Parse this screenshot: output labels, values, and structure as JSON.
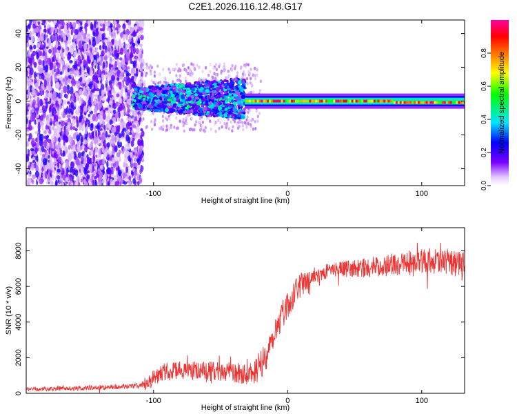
{
  "title": "C2E1.2026.116.12.48.G17",
  "chart_data": [
    {
      "type": "heatmap",
      "title": "C2E1.2026.116.12.48.G17",
      "xlabel": "Height of straight line (km)",
      "ylabel": "Frequency (Hz)",
      "xlim": [
        -195,
        132
      ],
      "ylim": [
        -50,
        48
      ],
      "xticks": [
        -100,
        0,
        100
      ],
      "yticks": [
        -40,
        -20,
        0,
        20,
        40
      ],
      "xtick_labels": [
        "-100",
        "0",
        "100"
      ],
      "ytick_labels": [
        "-40",
        "-20",
        "0",
        "20",
        "40"
      ],
      "regions": [
        {
          "name": "noise",
          "x_range": [
            -195,
            -108
          ],
          "freq_range": [
            -50,
            48
          ],
          "amplitude": [
            0.05,
            0.25
          ]
        },
        {
          "name": "transition",
          "x_range": [
            -115,
            -32
          ],
          "freq_range": [
            -8,
            15
          ],
          "amplitude": [
            0.1,
            0.45
          ]
        },
        {
          "name": "signal",
          "x_range": [
            -32,
            132
          ],
          "freq_range": [
            -2,
            1
          ],
          "amplitude": [
            0.5,
            1.0
          ]
        }
      ],
      "colorbar": {
        "label": "Normalized spectral amplitude",
        "range": [
          0,
          1
        ],
        "ticks": [
          0.0,
          0.2,
          0.4,
          0.6,
          0.8
        ],
        "tick_labels": [
          "0.0",
          "0.2",
          "0.4",
          "0.6",
          "0.8"
        ],
        "colors": [
          "#ffffff",
          "#7a00ff",
          "#0000ff",
          "#00e5ff",
          "#00ff00",
          "#ffff00",
          "#ff8800",
          "#ff0000",
          "#ff00a0"
        ]
      }
    },
    {
      "type": "line",
      "xlabel": "Height of straight line (km)",
      "ylabel": "SNR (10 * v/v)",
      "xlim": [
        -195,
        132
      ],
      "ylim": [
        0,
        9300
      ],
      "xticks": [
        -100,
        0,
        100
      ],
      "yticks": [
        0,
        2000,
        4000,
        6000,
        8000
      ],
      "xtick_labels": [
        "-100",
        "0",
        "100"
      ],
      "ytick_labels": [
        "0",
        "2000",
        "4000",
        "6000",
        "8000"
      ],
      "series": [
        {
          "name": "SNR",
          "color": "#ee3333",
          "trend": {
            "x": [
              -195,
              -160,
              -140,
              -115,
              -105,
              -95,
              -80,
              -60,
              -40,
              -30,
              -22,
              -15,
              -10,
              -5,
              0,
              5,
              10,
              20,
              30,
              45,
              60,
              80,
              100,
              115,
              132
            ],
            "y": [
              250,
              270,
              320,
              400,
              500,
              1200,
              1300,
              1250,
              1150,
              1100,
              1400,
              2300,
              3400,
              4300,
              5000,
              5600,
              6100,
              6600,
              6900,
              7000,
              7050,
              7250,
              7500,
              7350,
              7200
            ]
          },
          "noise_amplitude": {
            "x": [
              -195,
              -110,
              -100,
              -30,
              -20,
              0,
              30,
              80,
              132
            ],
            "y": [
              120,
              150,
              500,
              600,
              900,
              800,
              400,
              650,
              750
            ]
          }
        }
      ]
    }
  ]
}
